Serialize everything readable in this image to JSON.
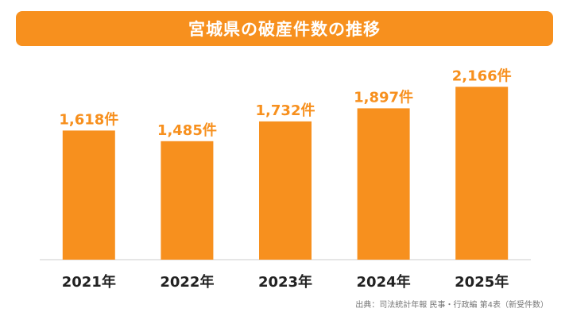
{
  "colors": {
    "accent": "#f7901e",
    "title_text": "#ffffff",
    "tick_text": "#222222",
    "baseline": "#cccccc"
  },
  "chart_data": {
    "type": "bar",
    "title": "宮城県の破産件数の推移",
    "categories": [
      "2021年",
      "2022年",
      "2023年",
      "2024年",
      "2025年"
    ],
    "values": [
      1618,
      1485,
      1732,
      1897,
      2166
    ],
    "value_labels": [
      "1,618件",
      "1,485件",
      "1,732件",
      "1,897件",
      "2,166件"
    ],
    "xlabel": "",
    "ylabel": "",
    "ylim": [
      0,
      2500
    ],
    "grid": false,
    "legend": "none",
    "source": "出典：司法統計年報 民事・行政編 第4表（新受件数）"
  }
}
